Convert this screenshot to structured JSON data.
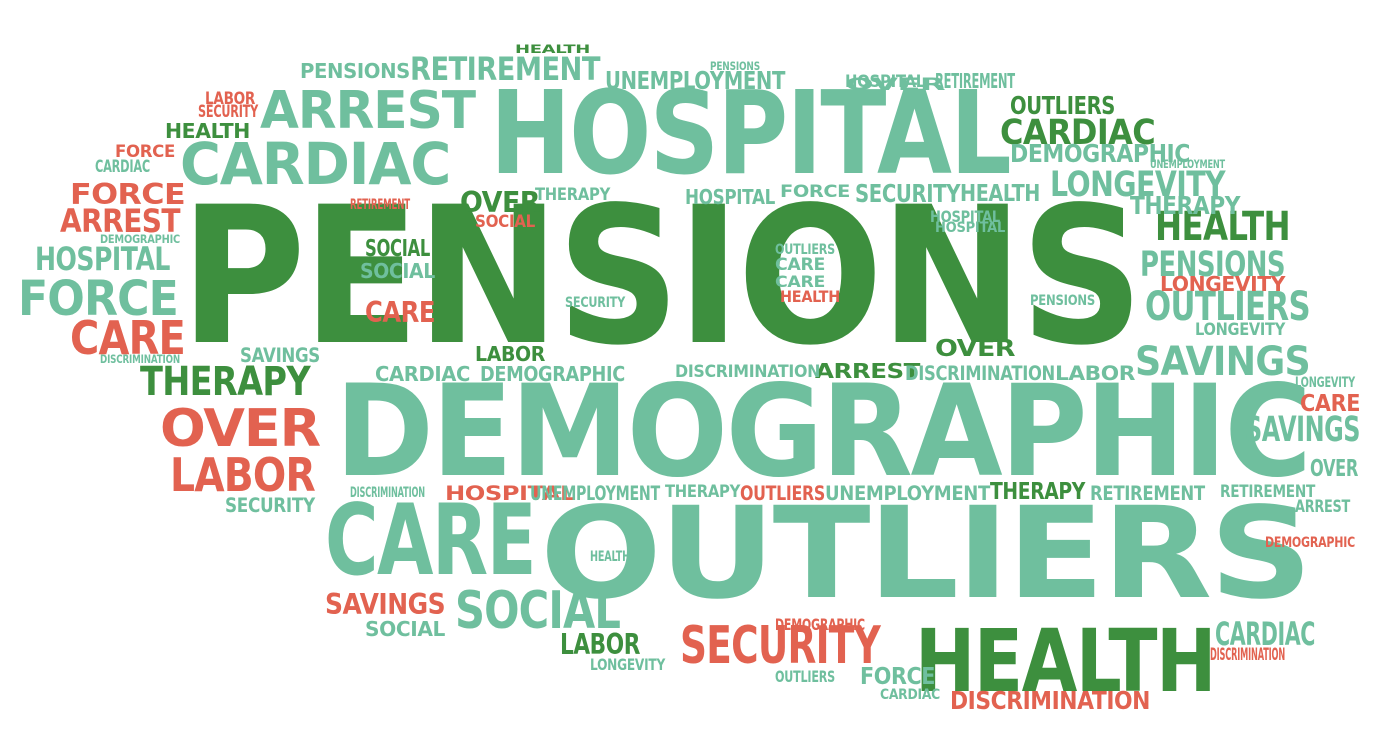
{
  "colors": {
    "dark_green": "#3d8f3e",
    "light_green": "#6fbf9e",
    "red": "#e26250"
  },
  "words": [
    {
      "text": "PENSIONS",
      "color": "dark_green"
    },
    {
      "text": "DEMOGRAPHIC",
      "color": "light_green"
    },
    {
      "text": "HOSPITAL",
      "color": "light_green"
    },
    {
      "text": "OUTLIERS",
      "color": "light_green"
    },
    {
      "text": "CARE",
      "color": "light_green"
    },
    {
      "text": "HEALTH",
      "color": "dark_green"
    },
    {
      "text": "ARREST",
      "color": "light_green"
    },
    {
      "text": "CARDIAC",
      "color": "light_green"
    },
    {
      "text": "SOCIAL",
      "color": "light_green"
    },
    {
      "text": "SECURITY",
      "color": "red"
    },
    {
      "text": "OVER",
      "color": "red"
    },
    {
      "text": "LABOR",
      "color": "red"
    },
    {
      "text": "THERAPY",
      "color": "dark_green"
    },
    {
      "text": "FORCE",
      "color": "light_green"
    },
    {
      "text": "CARE",
      "color": "red"
    },
    {
      "text": "SAVINGS",
      "color": "light_green"
    },
    {
      "text": "OUTLIERS",
      "color": "light_green"
    },
    {
      "text": "PENSIONS",
      "color": "light_green"
    },
    {
      "text": "HEALTH",
      "color": "dark_green"
    },
    {
      "text": "LONGEVITY",
      "color": "light_green"
    },
    {
      "text": "PENSIONS",
      "color": "light_green"
    },
    {
      "text": "RETIREMENT",
      "color": "light_green"
    },
    {
      "text": "UNEMPLOYMENT",
      "color": "light_green"
    },
    {
      "text": "OUTLIERS",
      "color": "dark_green"
    },
    {
      "text": "CARDIAC",
      "color": "dark_green"
    },
    {
      "text": "DEMOGRAPHIC",
      "color": "light_green"
    },
    {
      "text": "THERAPY",
      "color": "light_green"
    },
    {
      "text": "LONGEVITY",
      "color": "red"
    },
    {
      "text": "LONGEVITY",
      "color": "light_green"
    },
    {
      "text": "FORCE",
      "color": "red"
    },
    {
      "text": "ARREST",
      "color": "red"
    },
    {
      "text": "HOSPITAL",
      "color": "light_green"
    },
    {
      "text": "SOCIAL",
      "color": "dark_green"
    },
    {
      "text": "CARE",
      "color": "red"
    },
    {
      "text": "SOCIAL",
      "color": "light_green"
    },
    {
      "text": "SAVINGS",
      "color": "red"
    },
    {
      "text": "SOCIAL",
      "color": "light_green"
    },
    {
      "text": "LABOR",
      "color": "dark_green"
    },
    {
      "text": "LONGEVITY",
      "color": "light_green"
    },
    {
      "text": "OVER",
      "color": "dark_green"
    },
    {
      "text": "ARREST",
      "color": "dark_green"
    },
    {
      "text": "DISCRIMINATION",
      "color": "red"
    },
    {
      "text": "FORCE",
      "color": "light_green"
    },
    {
      "text": "OUTLIERS",
      "color": "light_green"
    },
    {
      "text": "CARDIAC",
      "color": "light_green"
    },
    {
      "text": "DEMOGRAPHIC",
      "color": "red"
    },
    {
      "text": "HOSPITAL",
      "color": "red"
    },
    {
      "text": "UNEMPLOYMENT",
      "color": "light_green"
    },
    {
      "text": "THERAPY",
      "color": "light_green"
    },
    {
      "text": "OUTLIERS",
      "color": "red"
    },
    {
      "text": "UNEMPLOYMENT",
      "color": "light_green"
    },
    {
      "text": "THERAPY",
      "color": "dark_green"
    },
    {
      "text": "RETIREMENT",
      "color": "light_green"
    },
    {
      "text": "RETIREMENT",
      "color": "light_green"
    },
    {
      "text": "DISCRIMINATION",
      "color": "light_green"
    },
    {
      "text": "SECURITY",
      "color": "light_green"
    },
    {
      "text": "HEALTH",
      "color": "light_green"
    },
    {
      "text": "ARREST",
      "color": "light_green"
    },
    {
      "text": "DEMOGRAPHIC",
      "color": "red"
    },
    {
      "text": "CARE",
      "color": "red"
    },
    {
      "text": "SAVINGS",
      "color": "light_green"
    },
    {
      "text": "OVER",
      "color": "light_green"
    },
    {
      "text": "LONGEVITY",
      "color": "light_green"
    },
    {
      "text": "CARDIAC",
      "color": "light_green"
    },
    {
      "text": "DEMOGRAPHIC",
      "color": "light_green"
    },
    {
      "text": "DISCRIMINATION",
      "color": "light_green"
    },
    {
      "text": "ARREST",
      "color": "light_green"
    },
    {
      "text": "DISCRIMINATION",
      "color": "light_green"
    },
    {
      "text": "LABOR",
      "color": "light_green"
    },
    {
      "text": "LABOR",
      "color": "dark_green"
    },
    {
      "text": "OVER",
      "color": "dark_green"
    },
    {
      "text": "THERAPY",
      "color": "light_green"
    },
    {
      "text": "HOSPITAL",
      "color": "light_green"
    },
    {
      "text": "FORCE",
      "color": "light_green"
    },
    {
      "text": "SECURITY",
      "color": "light_green"
    },
    {
      "text": "HEALTH",
      "color": "light_green"
    },
    {
      "text": "HOSPITAL",
      "color": "light_green"
    },
    {
      "text": "HOSPITAL",
      "color": "light_green"
    },
    {
      "text": "OVER",
      "color": "light_green"
    },
    {
      "text": "SOCIAL",
      "color": "red"
    },
    {
      "text": "RETIREMENT",
      "color": "red"
    },
    {
      "text": "SOCIAL",
      "color": "light_green"
    },
    {
      "text": "CARE",
      "color": "light_green"
    },
    {
      "text": "OUTLIERS",
      "color": "light_green"
    },
    {
      "text": "CARE",
      "color": "light_green"
    },
    {
      "text": "HEALTH",
      "color": "red"
    },
    {
      "text": "SECURITY",
      "color": "light_green"
    },
    {
      "text": "PENSIONS",
      "color": "light_green"
    },
    {
      "text": "SAVINGS",
      "color": "light_green"
    },
    {
      "text": "LABOR",
      "color": "light_green"
    },
    {
      "text": "CARDIAC",
      "color": "light_green"
    },
    {
      "text": "DEMOGRAPHIC",
      "color": "light_green"
    },
    {
      "text": "DISCRIMINATION",
      "color": "light_green"
    },
    {
      "text": "LABOR",
      "color": "red"
    },
    {
      "text": "SECURITY",
      "color": "red"
    },
    {
      "text": "HEALTH",
      "color": "dark_green"
    },
    {
      "text": "FORCE",
      "color": "red"
    },
    {
      "text": "CARDIAC",
      "color": "light_green"
    },
    {
      "text": "ARREST",
      "color": "light_green"
    },
    {
      "text": "DEMOGRAPHIC",
      "color": "light_green"
    },
    {
      "text": "HOSPITAL",
      "color": "light_green"
    },
    {
      "text": "FORCE",
      "color": "light_green"
    },
    {
      "text": "CARE",
      "color": "red"
    },
    {
      "text": "DISCRIMINATION",
      "color": "light_green"
    },
    {
      "text": "THERAPY",
      "color": "dark_green"
    },
    {
      "text": "OVER",
      "color": "red"
    },
    {
      "text": "LABOR",
      "color": "red"
    },
    {
      "text": "SECURITY",
      "color": "light_green"
    },
    {
      "text": "DISCRIMINATION",
      "color": "light_green"
    },
    {
      "text": "HEALTH",
      "color": "light_green"
    },
    {
      "text": "SAVINGS",
      "color": "red"
    },
    {
      "text": "SOCIAL",
      "color": "light_green"
    },
    {
      "text": "SOCIAL",
      "color": "light_green"
    },
    {
      "text": "LABOR",
      "color": "dark_green"
    },
    {
      "text": "LONGEVITY",
      "color": "light_green"
    },
    {
      "text": "DEMOGRAPHIC",
      "color": "red"
    },
    {
      "text": "SECURITY",
      "color": "red"
    },
    {
      "text": "OUTLIERS",
      "color": "light_green"
    },
    {
      "text": "FORCE",
      "color": "light_green"
    },
    {
      "text": "CARDIAC",
      "color": "light_green"
    },
    {
      "text": "DISCRIMINATION",
      "color": "red"
    },
    {
      "text": "HEALTH",
      "color": "dark_green"
    },
    {
      "text": "OVER",
      "color": "light_green"
    },
    {
      "text": "ARREST",
      "color": "light_green"
    },
    {
      "text": "UNEMPLOYMENT",
      "color": "light_green"
    },
    {
      "text": "PENSIONS",
      "color": "light_green"
    },
    {
      "text": "RETIREMENT",
      "color": "light_green"
    },
    {
      "text": "UNEMPLOYMENT",
      "color": "light_green"
    },
    {
      "text": "PENSIONS",
      "color": "light_green"
    },
    {
      "text": "PENSIONS",
      "color": "light_green"
    },
    {
      "text": "SAVINGS",
      "color": "light_green"
    },
    {
      "text": "LABOR",
      "color": "red"
    },
    {
      "text": "SECURITY",
      "color": "red"
    },
    {
      "text": "HEALTH",
      "color": "dark_green"
    },
    {
      "text": "ARREST",
      "color": "dark_green"
    },
    {
      "text": "OUTLIERS",
      "color": "dark_green"
    },
    {
      "text": "CARDIAC",
      "color": "light_green"
    },
    {
      "text": "DEMOGRAPHIC",
      "color": "light_green"
    },
    {
      "text": "UNEMPLOYMENT",
      "color": "red"
    },
    {
      "text": "FORCE",
      "color": "red"
    },
    {
      "text": "CARDIAC",
      "color": "light_green"
    },
    {
      "text": "RETIREMENT",
      "color": "red"
    },
    {
      "text": "FORCE",
      "color": "red"
    },
    {
      "text": "ARREST",
      "color": "red"
    },
    {
      "text": "DEMOGRAPHIC",
      "color": "light_green"
    },
    {
      "text": "HOSPITAL",
      "color": "light_green"
    },
    {
      "text": "FORCE",
      "color": "light_green"
    },
    {
      "text": "CARE",
      "color": "red"
    },
    {
      "text": "DISCRIMINATION",
      "color": "light_green"
    },
    {
      "text": "THERAPY",
      "color": "dark_green"
    },
    {
      "text": "OVER",
      "color": "red"
    },
    {
      "text": "LABOR",
      "color": "red"
    },
    {
      "text": "SECURITY",
      "color": "light_green"
    },
    {
      "text": "HOSPITAL",
      "color": "light_green"
    },
    {
      "text": "HOSPITAL",
      "color": "light_green"
    },
    {
      "text": "OVER",
      "color": "light_green"
    },
    {
      "text": "SOCIAL",
      "color": "red"
    },
    {
      "text": "CARE",
      "color": "light_green"
    },
    {
      "text": "CARE",
      "color": "light_green"
    },
    {
      "text": "HEALTH",
      "color": "red"
    },
    {
      "text": "SECURITY",
      "color": "light_green"
    },
    {
      "text": "PENSIONS",
      "color": "light_green"
    },
    {
      "text": "SAVINGS",
      "color": "light_green"
    },
    {
      "text": "LABOR",
      "color": "light_green"
    },
    {
      "text": "CARDIAC",
      "color": "light_green"
    },
    {
      "text": "DEMOGRAPHIC",
      "color": "light_green"
    },
    {
      "text": "DISCRIMINATION",
      "color": "light_green"
    },
    {
      "text": "ARREST",
      "color": "light_green"
    },
    {
      "text": "DISCRIMINATION",
      "color": "light_green"
    },
    {
      "text": "LABOR",
      "color": "light_green"
    },
    {
      "text": "OVER",
      "color": "dark_green"
    },
    {
      "text": "HEALTH",
      "color": "light_green"
    },
    {
      "text": "PENSIONS",
      "color": "light_green"
    },
    {
      "text": "LONGEVITY",
      "color": "light_green"
    },
    {
      "text": "LONGEVITY",
      "color": "light_green"
    },
    {
      "text": "CARE",
      "color": "red"
    },
    {
      "text": "SOCIAL",
      "color": "dark_green"
    },
    {
      "text": "SAVINGS",
      "color": "light_green"
    },
    {
      "text": "OVER",
      "color": "light_green"
    },
    {
      "text": "RETIREMENT",
      "color": "light_green"
    },
    {
      "text": "ARREST",
      "color": "light_green"
    },
    {
      "text": "DEMOGRAPHIC",
      "color": "red"
    },
    {
      "text": "HOSPITAL",
      "color": "red"
    },
    {
      "text": "UNEMPLOYMENT",
      "color": "red"
    },
    {
      "text": "THERAPY",
      "color": "light_green"
    },
    {
      "text": "OUTLIERS",
      "color": "red"
    },
    {
      "text": "UNEMPLOYMENT",
      "color": "light_green"
    },
    {
      "text": "THERAPY",
      "color": "dark_green"
    },
    {
      "text": "RETIREMENT",
      "color": "light_green"
    },
    {
      "text": "DISCRIMINATION",
      "color": "light_green"
    },
    {
      "text": "HEALTH",
      "color": "light_green"
    },
    {
      "text": "CARE",
      "color": "light_green"
    },
    {
      "text": "OUTLIERS",
      "color": "light_green"
    },
    {
      "text": "SAVINGS",
      "color": "red"
    },
    {
      "text": "SOCIAL",
      "color": "light_green"
    },
    {
      "text": "SOCIAL",
      "color": "light_green"
    },
    {
      "text": "DEMOGRAPHIC",
      "color": "red"
    },
    {
      "text": "LABOR",
      "color": "dark_green"
    },
    {
      "text": "SECURITY",
      "color": "red"
    },
    {
      "text": "HEALTH",
      "color": "dark_green"
    },
    {
      "text": "OVER",
      "color": "light_green"
    },
    {
      "text": "LONGEVITY",
      "color": "light_green"
    },
    {
      "text": "OUTLIERS",
      "color": "light_green"
    },
    {
      "text": "FORCE",
      "color": "light_green"
    },
    {
      "text": "ARREST",
      "color": "light_green"
    },
    {
      "text": "CARDIAC",
      "color": "light_green"
    },
    {
      "text": "DISCRIMINATION",
      "color": "red"
    }
  ]
}
